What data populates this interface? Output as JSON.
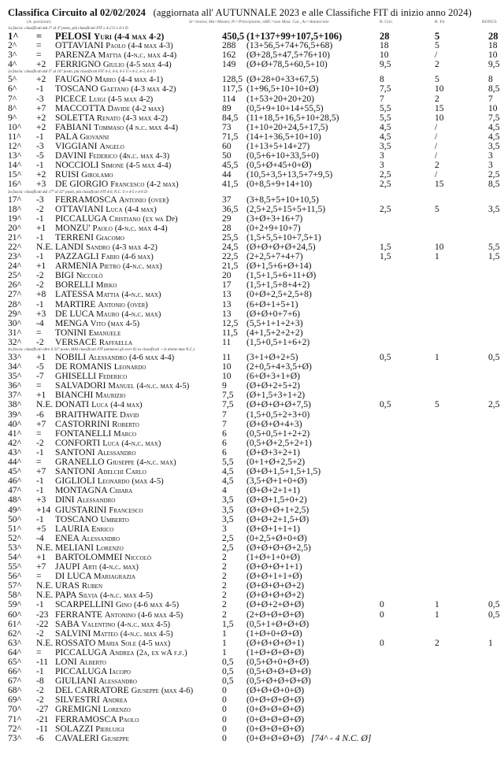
{
  "title": {
    "main": "Classifica  Circuito  al 02/02/2024",
    "sub": "(aggiornata  all' AUTUNNALE 2023 e alle Classifiche FIT di inizio anno 2024)"
  },
  "header": {
    "positions_label": "(A. posizioni)",
    "legend": "Sr=Senior, Ma=Master, Pr=Principiante, nMC=non Mast. Cat., Ac=Amatoriale",
    "col_bcirc": "B. Circ.",
    "col_bfit": "B. Fit",
    "col_bonus": "BONUS"
  },
  "sections": [
    {
      "heading": "1a fascia: classificati dal 1° al 4° posto, più classificati FIT ≥ 4-2 U e 4-1 D",
      "rows": [
        [
          "1^",
          "=",
          "PELOSI",
          "Yuri",
          "(4-4 max 4-2)",
          "450,5",
          "(1+137+99+107,5+106)",
          "28",
          "5",
          "28"
        ],
        [
          "2^",
          "=",
          "OTTAVIANI",
          "Paolo",
          "(4-4 max 4-3)",
          "288",
          "(13+56,5+74+76,5+68)",
          "18",
          "5",
          "18"
        ],
        [
          "3^",
          "=",
          "PARENZA",
          "Mattia",
          "(4-n.c. max 4-4)",
          "162",
          "(Ø+28,5+47,5+76+10)",
          "10",
          "/",
          "10"
        ],
        [
          "4^",
          "+2",
          "FERRIGNO ",
          "Giulio",
          "(4-5 max 4-4)",
          "149",
          "(Ø+Ø+78,5+60,5+10)",
          "9,5",
          "2",
          "9,5"
        ]
      ]
    },
    {
      "heading": "2a fascia: classificati dal 5° al 16° posto, più classificati FIT 4-3, 4-4, 4-5 U e 4-2, 4-3, 4-4 D",
      "rows": [
        [
          "5^",
          "+2",
          "FAUGNO",
          "Mario",
          "(4-4 max 4-1)",
          "128,5",
          "(Ø+28+0+33+67,5)",
          "8",
          "5",
          "8"
        ],
        [
          "6^",
          "-1",
          "TOSCANO",
          "Gaetano",
          "(4-3 max 4-2)",
          "117,5",
          "(1+96,5+10+10+Ø)",
          "7,5",
          "10",
          "8,5"
        ],
        [
          "7^",
          "-3",
          "PICECE",
          "Luigi",
          "(4-5 max 4-2)",
          "114",
          "(1+53+20+20+20)",
          "7",
          "2",
          "7"
        ],
        [
          "8^",
          "+7",
          "MACCOTTA",
          "Davide",
          "(4-2 max)",
          "89",
          "(0,5+9+10+14+55,5)",
          "5,5",
          "15",
          "10"
        ],
        [
          "9^",
          "+2",
          "SOLETTA",
          "Renato",
          "(4-3 max 4-2)",
          "84,5",
          "(11+18,5+16,5+10+28,5)",
          "5,5",
          "10",
          "7,5"
        ],
        [
          "10^",
          "+2",
          "FABIANI",
          "Tommaso",
          "(4 n.c. max 4-4)",
          "73",
          "(1+10+20+24,5+17,5)",
          "4,5",
          "/",
          "4,5"
        ],
        [
          "11^",
          "-1",
          "PALA ",
          "Giovanni",
          "",
          "71,5",
          "(14+1+36,5+10+10)",
          "4,5",
          "/",
          "4,5"
        ],
        [
          "12^",
          "-3",
          "VIGGIANI ",
          "Angelo",
          "",
          "60",
          "(1+13+5+14+27)",
          "3,5",
          "/",
          "3,5"
        ],
        [
          "13^",
          "-5",
          "DAVINI",
          "Federico",
          "(4n.c. max 4-3)",
          "50",
          "(0,5+6+10+33,5+0)",
          "3",
          "/",
          "3"
        ],
        [
          "14^",
          "-1",
          "NOCCIOLI",
          "Simone",
          "(4-5 max 4-4)",
          "45,5",
          "(0,5+Ø+45+0+Ø)",
          "3",
          "2",
          "3"
        ],
        [
          "15^",
          "+2",
          "RUISI",
          "Girolamo",
          "",
          "44",
          "(10,5+3,5+13,5+7+9,5)",
          "2,5",
          "/",
          "2,5"
        ],
        [
          "16^",
          "+3",
          "DE GIORGIO",
          "Francesco",
          "(4-2 max)",
          "41,5",
          "(0+8,5+9+14+10)",
          "2,5",
          "15",
          "8,5"
        ]
      ]
    },
    {
      "heading": "3a fascia: classificati dal 17° al 32° posto, più classificati FIT 4-6, N.C. U e 4-5 e 4-6 D",
      "rows": [
        [
          "17^",
          "-3",
          "FERRAMOSCA ",
          "Antonio",
          "(over)",
          "37",
          "(3+8,5+5+10+10,5)",
          "",
          "",
          ""
        ],
        [
          "18^",
          "-2",
          "OTTAVIANI",
          "Luca",
          "(4-4 max)",
          "36,5",
          "(2,5+2,5+15+5+11,5)",
          "2,5",
          "5",
          "3,5"
        ],
        [
          "19^",
          "-1",
          "PICCALUGA ",
          "Cristiano",
          "(ex wa Dp)",
          "29",
          "(3+Ø+3+16+7)",
          "",
          "",
          ""
        ],
        [
          "20^",
          "+1",
          "MONZU'",
          "Paolo",
          "(4-n.c. max 4-4)",
          "28",
          "(0+2+9+10+7)",
          "",
          "",
          ""
        ],
        [
          "21^",
          "-1",
          "TERRENI ",
          "Giacomo",
          "",
          "25,5",
          "(1,5+5,5+10+7,5+1)",
          "",
          "",
          ""
        ],
        [
          "22^",
          "N.E.",
          "LANDI ",
          "Sandro",
          "(4-3 max 4-2)",
          "24,5",
          "(Ø+Ø+Ø+Ø+24,5)",
          "1,5",
          "10",
          "5,5"
        ],
        [
          "23^",
          "-1",
          "PAZZAGLI ",
          "Fabio",
          "(4-6 max)",
          "22,5",
          "(2+2,5+7+4+7)",
          "1,5",
          "1",
          "1,5"
        ],
        [
          "24^",
          "+1",
          "ARMENIA",
          "Pietro",
          "(4-n.c. max)",
          "21,5",
          "(Ø+1,5+6+Ø+14)",
          "",
          "",
          ""
        ],
        [
          "25^",
          "-2",
          "BIGI",
          "Niccolò",
          "",
          "20",
          "(1,5+1,5+6+11+Ø)",
          "",
          "",
          ""
        ],
        [
          "26^",
          "-2",
          "BORELLI",
          "Mirko",
          "",
          "17",
          "(1,5+1,5+8+4+2)",
          "",
          "",
          ""
        ],
        [
          "27^",
          "+8",
          "LATESSA",
          "Mattia",
          "(4-n.c. max)",
          "13",
          "(0+Ø+2,5+2,5+8)",
          "",
          "",
          ""
        ],
        [
          "28^",
          "-1",
          "MARTIRE",
          "Antonio",
          "(over)",
          "13",
          "(6+Ø+1+5+1)",
          "",
          "",
          ""
        ],
        [
          "29^",
          "+3",
          "DE LUCA ",
          "Mauro",
          "(4-n.c. max)",
          "13",
          "(Ø+Ø+0+7+6)",
          "",
          "",
          ""
        ],
        [
          "30^",
          "-4",
          "MENGA ",
          "Vito",
          "(max 4-5)",
          "12,5",
          "(5,5+1+1+2+3)",
          "",
          "",
          ""
        ],
        [
          "31^",
          "=",
          "TONINI",
          "Emanuele",
          "",
          "11,5",
          "(4+1,5+2+2+2)",
          "",
          "",
          ""
        ],
        [
          "32^",
          "-2",
          "VERSACE",
          "Raffaella",
          "",
          "11",
          "(1,5+0,5+1+6+2)",
          "",
          "",
          ""
        ]
      ]
    },
    {
      "heading": "4a fascia: classificati oltre il 33° posto, MAI classificati FIT (ammessi gli over 65 ex classificati + le donne max N.C.)",
      "rows": [
        [
          "33^",
          "+1",
          "NOBILI",
          "Alessandro",
          "(4-6 max 4-4)",
          "11",
          "(3+1+Ø+2+5)",
          "0,5",
          "1",
          "0,5"
        ],
        [
          "34^",
          "-5",
          "DE ROMANIS ",
          "Leonardo",
          "",
          "10",
          "(2+0,5+4+3,5+Ø)",
          "",
          "",
          ""
        ],
        [
          "35^",
          "-7",
          "GHISELLI ",
          "Federico",
          "",
          "10",
          "(6+Ø+3+1+Ø)",
          "",
          "",
          ""
        ],
        [
          "36^",
          "=",
          "SALVADORI ",
          "Manuel",
          "(4-n.c. max 4-5)",
          "9",
          "(Ø+Ø+2+5+2)",
          "",
          "",
          ""
        ],
        [
          "37^",
          "+1",
          "BIANCHI",
          "Maurizio",
          "",
          "7,5",
          "(Ø+1,5+3+1+2)",
          "",
          "",
          ""
        ],
        [
          "38^",
          "N.E.",
          "DONATI",
          "Luca",
          "(4-4 max)",
          "7,5",
          "(Ø+Ø+Ø+Ø+7,5)",
          "0,5",
          "5",
          "2,5"
        ],
        [
          "39^",
          "-6",
          "BRAITHWAITE ",
          "David",
          "",
          "7",
          "(1,5+0,5+2+3+0)",
          "",
          "",
          ""
        ],
        [
          "40^",
          "+7",
          "CASTORRINI ",
          "Roberto",
          "",
          "7",
          "(Ø+Ø+Ø+4+3)",
          "",
          "",
          ""
        ],
        [
          "41^",
          "=",
          "FONTANELLI",
          "Marco",
          "",
          "6",
          "(0,5+0,5+1+2+2)",
          "",
          "",
          ""
        ],
        [
          "42^",
          "-2",
          "CONFORTI",
          "Luca",
          "(4-n.c. max)",
          "6",
          "(0,5+Ø+2,5+2+1)",
          "",
          "",
          ""
        ],
        [
          "43^",
          "-1",
          "SANTONI ",
          "Alessandro",
          "",
          "6",
          "(Ø+Ø+3+2+1)",
          "",
          "",
          ""
        ],
        [
          "44^",
          "=",
          "GRANELLO",
          "Giuseppe",
          "(4-n.c. max)",
          "5,5",
          "(0+1+Ø+2,5+2)",
          "",
          "",
          ""
        ],
        [
          "45^",
          "+7",
          "SANTONI ",
          "Adelchi Carlo",
          "",
          "4,5",
          "(Ø+Ø+1,5+1,5+1,5)",
          "",
          "",
          ""
        ],
        [
          "46^",
          "-1",
          "GIGLIOLI",
          "Leonardo",
          "(max 4-5)",
          "4,5",
          "(3,5+Ø+1+0+Ø)",
          "",
          "",
          ""
        ],
        [
          "47^",
          "-1",
          "MONTAGNA",
          "Chiara",
          "",
          "4",
          "(Ø+Ø+2+1+1)",
          "",
          "",
          ""
        ],
        [
          "48^",
          "+3",
          "DINI",
          "Alessandro",
          "",
          "3,5",
          "(Ø+Ø+1,5+0+2)",
          "",
          "",
          ""
        ],
        [
          "49^",
          "+14",
          "GIUSTARINI ",
          "Francesco",
          "",
          "3,5",
          "(Ø+Ø+Ø+1+2,5)",
          "",
          "",
          ""
        ],
        [
          "50^",
          "-1",
          "TOSCANO ",
          "Umberto",
          "",
          "3,5",
          "(Ø+Ø+2+1,5+Ø)",
          "",
          "",
          ""
        ],
        [
          "51^",
          "+5",
          "LAURIA ",
          "Enrico",
          "",
          "3",
          "(Ø+Ø+1+1+1)",
          "",
          "",
          ""
        ],
        [
          "52^",
          "-4",
          "ENEA ",
          "Alessandro",
          "",
          "2,5",
          "(0+2,5+Ø+0+Ø)",
          "",
          "",
          ""
        ],
        [
          "53^",
          "N.E.",
          "MELIANI",
          "Lorenzo",
          "",
          "2,5",
          "(Ø+Ø+Ø+Ø+2,5)",
          "",
          "",
          ""
        ],
        [
          "54^",
          "+1",
          "BARTOLOMMEI",
          "Niccolò",
          "",
          "2",
          "(1+Ø+1+0+Ø)",
          "",
          "",
          ""
        ],
        [
          "55^",
          "+7",
          "JAUPI ",
          "Arti",
          "(4-n.c. max)",
          "2",
          "(Ø+Ø+Ø+1+1)",
          "",
          "",
          ""
        ],
        [
          "56^",
          "=",
          "DI LUCA ",
          "Mariagrazia",
          "",
          "2",
          "(Ø+Ø+1+1+Ø)",
          "",
          "",
          ""
        ],
        [
          "57^",
          "N.E.",
          "URAS",
          "Ruben",
          "",
          "2",
          "(Ø+Ø+Ø+Ø+2)",
          "",
          "",
          ""
        ],
        [
          "58^",
          "N.E.",
          "PAPA",
          "Silvia",
          "(4-n.c. max 4-5)",
          "2",
          "(Ø+Ø+Ø+Ø+2)",
          "",
          "",
          ""
        ],
        [
          "59^",
          "-1",
          "SCARPELLINI ",
          "Gino",
          "(4-6 max 4-5)",
          "2",
          "(Ø+Ø+2+Ø+Ø)",
          "0",
          "1",
          "0,5"
        ],
        [
          "60^",
          "-23",
          "FERRANTE",
          "Antonino",
          "(4-6 max 4-5)",
          "2",
          "(2+Ø+Ø+Ø+Ø)",
          "0",
          "1",
          "0,5"
        ],
        [
          "61^",
          "-22",
          "SABA ",
          "Valentino",
          "(4-n.c. max 4-5)",
          "1,5",
          "(0,5+1+Ø+Ø+Ø)",
          "",
          "",
          ""
        ],
        [
          "62^",
          "-2",
          "SALVINI ",
          "Matteo",
          "(4-n.c. max 4-5)",
          "1",
          "(1+Ø+0+Ø+Ø)",
          "",
          "",
          ""
        ],
        [
          "63^",
          "N.E.",
          "ROSSATO",
          "Maria Sole",
          "(4-5 max)",
          "1",
          "(Ø+Ø+Ø+Ø+1)",
          "0",
          "2",
          "1"
        ],
        [
          "64^",
          "=",
          "PICCALUGA",
          "Andrea",
          "(2a, ex wA f.f.)",
          "1",
          "(1+Ø+Ø+Ø+Ø)",
          "",
          "",
          ""
        ],
        [
          "65^",
          "-11",
          "LONI ",
          "Alberto",
          "",
          "0,5",
          "(0,5+Ø+0+Ø+Ø)",
          "",
          "",
          ""
        ],
        [
          "66^",
          "-1",
          "PICCALUGA",
          "Iacopo",
          "",
          "0,5",
          "(0,5+Ø+Ø+Ø+Ø)",
          "",
          "",
          ""
        ],
        [
          "67^",
          "-8",
          "GIULIANI",
          "Alessandro",
          "",
          "0,5",
          "(0,5+Ø+Ø+Ø+Ø)",
          "",
          "",
          ""
        ],
        [
          "68^",
          "-2",
          "DEL CARRATORE ",
          "Giuseppe",
          "(max 4-6)",
          "0",
          "(Ø+Ø+Ø+0+Ø)",
          "",
          "",
          ""
        ],
        [
          "69^",
          "-2",
          "SILVESTRI",
          "Andrea",
          "",
          "0",
          "(0+Ø+Ø+Ø+Ø)",
          "",
          "",
          ""
        ],
        [
          "70^",
          "-27",
          "GREMIGNI",
          "Lorenzo",
          "",
          "0",
          "(0+Ø+Ø+Ø+Ø)",
          "",
          "",
          ""
        ],
        [
          "71^",
          "-21",
          "FERRAMOSCA ",
          "Paolo",
          "",
          "0",
          "(0+Ø+Ø+Ø+Ø)",
          "",
          "",
          ""
        ],
        [
          "72^",
          "-11",
          "SOLAZZI",
          "Pierluigi",
          "",
          "0",
          "(0+Ø+Ø+Ø+Ø)",
          "",
          "",
          ""
        ],
        [
          "73^",
          "-6",
          "CAVALERI ",
          "Giuseppe",
          "",
          "0",
          "(0+Ø+Ø+Ø+Ø)",
          "",
          "",
          ""
        ]
      ]
    }
  ],
  "footer_note": "[74^ - 4 N.C. Ø]"
}
